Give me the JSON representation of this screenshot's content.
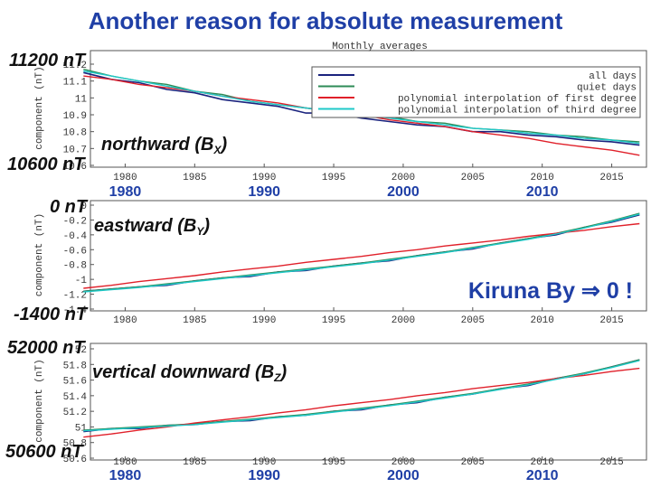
{
  "slide": {
    "title": "Another reason for absolute measurement",
    "note": "Kiruna By ⇒ 0 !"
  },
  "chart_data": [
    {
      "type": "line",
      "title": "Monthly averages",
      "ylabel": "component (nT)",
      "legend": true,
      "top_label": "11200 nT",
      "bottom_label": "10600 nT",
      "component_label": {
        "text": "northward (B",
        "sub": "X",
        "close": ")"
      },
      "year_labels": [
        "1980",
        "1990",
        "2000",
        "2010"
      ],
      "x": [
        1977,
        1979,
        1981,
        1983,
        1985,
        1987,
        1989,
        1991,
        1993,
        1995,
        1997,
        1999,
        2001,
        2003,
        2005,
        2007,
        2009,
        2011,
        2013,
        2015,
        2017
      ],
      "xlim": [
        1977.5,
        2017.5
      ],
      "xticks": [
        1980,
        1985,
        1990,
        1995,
        2000,
        2005,
        2010,
        2015
      ],
      "ylim": [
        10.6,
        11.2
      ],
      "yticks": [
        10.6,
        10.7,
        10.8,
        10.9,
        11,
        11.1,
        11.2
      ],
      "series": [
        {
          "name": "all days",
          "color": "#1a237e",
          "values": [
            11.15,
            11.11,
            11.09,
            11.05,
            11.03,
            10.99,
            10.97,
            10.95,
            10.91,
            10.91,
            10.88,
            10.86,
            10.84,
            10.83,
            10.8,
            10.8,
            10.78,
            10.77,
            10.75,
            10.74,
            10.72
          ]
        },
        {
          "name": "quiet days",
          "color": "#2e8b57",
          "values": [
            11.17,
            11.13,
            11.1,
            11.08,
            11.04,
            11.02,
            10.98,
            10.96,
            10.94,
            10.92,
            10.9,
            10.89,
            10.86,
            10.85,
            10.82,
            10.81,
            10.8,
            10.78,
            10.77,
            10.75,
            10.74
          ]
        },
        {
          "name": "polynomial interpolation of first degree",
          "color": "#e0202a",
          "values": [
            11.13,
            11.11,
            11.08,
            11.06,
            11.04,
            11.01,
            10.99,
            10.97,
            10.94,
            10.92,
            10.9,
            10.87,
            10.85,
            10.83,
            10.8,
            10.78,
            10.76,
            10.73,
            10.71,
            10.69,
            10.66
          ]
        },
        {
          "name": "polynomial interpolation of third degree",
          "color": "#1fc8c8",
          "values": [
            11.16,
            11.13,
            11.1,
            11.07,
            11.04,
            11.01,
            10.98,
            10.96,
            10.94,
            10.92,
            10.9,
            10.88,
            10.86,
            10.84,
            10.82,
            10.81,
            10.79,
            10.78,
            10.76,
            10.75,
            10.73
          ]
        }
      ]
    },
    {
      "type": "line",
      "ylabel": "component (nT)",
      "legend": false,
      "top_label": "0 nT",
      "bottom_label": "-1400 nT",
      "component_label": {
        "text": "eastward (B",
        "sub": "Y",
        "close": ")"
      },
      "x": [
        1977,
        1979,
        1981,
        1983,
        1985,
        1987,
        1989,
        1991,
        1993,
        1995,
        1997,
        1999,
        2001,
        2003,
        2005,
        2007,
        2009,
        2011,
        2013,
        2015,
        2017
      ],
      "xlim": [
        1977.5,
        2017.5
      ],
      "xticks": [
        1980,
        1985,
        1990,
        1995,
        2000,
        2005,
        2010,
        2015
      ],
      "ylim": [
        -1.4,
        0
      ],
      "yticks": [
        -1.4,
        -1.2,
        -1,
        -0.8,
        -0.6,
        -0.4,
        -0.2,
        0
      ],
      "series": [
        {
          "name": "all days",
          "color": "#1a237e",
          "values": [
            -1.16,
            -1.13,
            -1.1,
            -1.08,
            -1.02,
            -0.98,
            -0.96,
            -0.9,
            -0.88,
            -0.82,
            -0.78,
            -0.75,
            -0.68,
            -0.63,
            -0.59,
            -0.51,
            -0.45,
            -0.4,
            -0.3,
            -0.23,
            -0.13
          ]
        },
        {
          "name": "quiet days",
          "color": "#2e8b57",
          "values": [
            -1.16,
            -1.13,
            -1.1,
            -1.06,
            -1.02,
            -0.98,
            -0.94,
            -0.9,
            -0.86,
            -0.82,
            -0.78,
            -0.73,
            -0.68,
            -0.63,
            -0.57,
            -0.51,
            -0.45,
            -0.38,
            -0.3,
            -0.21,
            -0.11
          ]
        },
        {
          "name": "polynomial interpolation of first degree",
          "color": "#e0202a",
          "values": [
            -1.12,
            -1.08,
            -1.03,
            -0.99,
            -0.95,
            -0.9,
            -0.86,
            -0.82,
            -0.77,
            -0.73,
            -0.69,
            -0.64,
            -0.6,
            -0.55,
            -0.51,
            -0.47,
            -0.42,
            -0.38,
            -0.34,
            -0.29,
            -0.25
          ]
        },
        {
          "name": "polynomial interpolation of third degree",
          "color": "#1fc8c8",
          "values": [
            -1.17,
            -1.14,
            -1.11,
            -1.07,
            -1.03,
            -0.99,
            -0.95,
            -0.91,
            -0.87,
            -0.83,
            -0.79,
            -0.74,
            -0.69,
            -0.64,
            -0.58,
            -0.52,
            -0.46,
            -0.39,
            -0.31,
            -0.22,
            -0.12
          ]
        }
      ]
    },
    {
      "type": "line",
      "ylabel": "component (nT)",
      "legend": false,
      "top_label": "52000 nT",
      "bottom_label": "50600 nT",
      "component_label": {
        "text": "vertical downward (B",
        "sub": "Z",
        "close": ")"
      },
      "year_labels": [
        "1980",
        "1990",
        "2000",
        "2010"
      ],
      "x": [
        1977,
        1979,
        1981,
        1983,
        1985,
        1987,
        1989,
        1991,
        1993,
        1995,
        1997,
        1999,
        2001,
        2003,
        2005,
        2007,
        2009,
        2011,
        2013,
        2015,
        2017
      ],
      "xlim": [
        1977.5,
        2017.5
      ],
      "xticks": [
        1980,
        1985,
        1990,
        1995,
        2000,
        2005,
        2010,
        2015
      ],
      "ylim": [
        50.6,
        52
      ],
      "yticks": [
        50.6,
        50.8,
        51,
        51.2,
        51.4,
        51.6,
        51.8,
        52
      ],
      "series": [
        {
          "name": "all days",
          "color": "#1a237e",
          "values": [
            50.94,
            50.98,
            50.98,
            51.02,
            51.03,
            51.07,
            51.08,
            51.13,
            51.15,
            51.2,
            51.22,
            51.28,
            51.31,
            51.38,
            51.42,
            51.49,
            51.53,
            51.62,
            51.68,
            51.77,
            51.86
          ]
        },
        {
          "name": "quiet days",
          "color": "#2e8b57",
          "values": [
            50.96,
            50.98,
            51,
            51.02,
            51.04,
            51.07,
            51.1,
            51.13,
            51.16,
            51.2,
            51.24,
            51.28,
            51.33,
            51.38,
            51.43,
            51.49,
            51.55,
            51.62,
            51.69,
            51.77,
            51.86
          ]
        },
        {
          "name": "polynomial interpolation of first degree",
          "color": "#e0202a",
          "values": [
            50.87,
            50.91,
            50.96,
            51,
            51.05,
            51.09,
            51.13,
            51.18,
            51.22,
            51.27,
            51.31,
            51.35,
            51.4,
            51.44,
            51.49,
            51.53,
            51.57,
            51.62,
            51.66,
            51.71,
            51.75
          ]
        },
        {
          "name": "polynomial interpolation of third degree",
          "color": "#1fc8c8",
          "values": [
            50.95,
            50.97,
            50.99,
            51.01,
            51.03,
            51.06,
            51.09,
            51.12,
            51.15,
            51.19,
            51.23,
            51.27,
            51.32,
            51.37,
            51.42,
            51.48,
            51.54,
            51.61,
            51.68,
            51.76,
            51.85
          ]
        }
      ]
    }
  ]
}
